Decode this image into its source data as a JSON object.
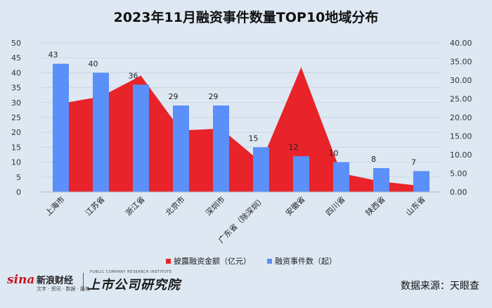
{
  "chart_data": {
    "type": "bar+area",
    "title": "2023年11月融资事件数量TOP10地域分布",
    "categories": [
      "上海市",
      "江苏省",
      "浙江省",
      "北京市",
      "深圳市",
      "广东省（除深圳）",
      "安徽省",
      "四川省",
      "陕西省",
      "山东省"
    ],
    "series": [
      {
        "name": "披露融资金额（亿元）",
        "type": "area",
        "axis": "right",
        "color": "#e8242a",
        "values": [
          23.7,
          25.6,
          31.2,
          16.5,
          17.0,
          8.0,
          33.5,
          5.0,
          2.8,
          1.6
        ]
      },
      {
        "name": "融资事件数（起）",
        "type": "bar",
        "axis": "left",
        "color": "#5b8ff9",
        "values": [
          43,
          40,
          36,
          29,
          29,
          15,
          12,
          10,
          8,
          7
        ]
      }
    ],
    "left_axis": {
      "min": 0,
      "max": 50,
      "step": 5,
      "ticks": [
        "0",
        "5",
        "10",
        "15",
        "20",
        "25",
        "30",
        "35",
        "40",
        "45",
        "50"
      ]
    },
    "right_axis": {
      "min": 0,
      "max": 40,
      "step": 5,
      "ticks": [
        "0.00",
        "5.00",
        "10.00",
        "15.00",
        "20.00",
        "25.00",
        "30.00",
        "35.00",
        "40.00"
      ]
    },
    "grid": true,
    "legend_position": "bottom"
  },
  "footer": {
    "logo_sina": "sina",
    "logo_sina_cn": "新浪财经",
    "logo_sina_sub": "文字 · 资讯 · 数据 · 服务",
    "logo_institute_en": "PUBLIC COMPANY RESEARCH INSTITUTE",
    "logo_institute_cn": "上市公司研究院",
    "source": "数据来源：天眼查"
  }
}
